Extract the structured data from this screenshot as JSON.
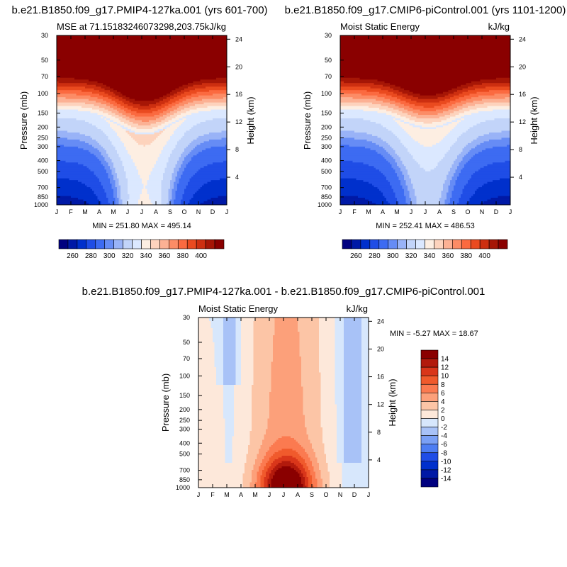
{
  "colors": {
    "absolute_scale": [
      "#00007f",
      "#0019a6",
      "#0030cc",
      "#1f4de6",
      "#3d6bf2",
      "#668cf5",
      "#99b3f7",
      "#c2d4f9",
      "#dbe8ff",
      "#fdeee2",
      "#fdd3bd",
      "#fcb194",
      "#fc8c66",
      "#fb6a40",
      "#ea4a1f",
      "#cd2f10",
      "#a61606",
      "#8a0000"
    ],
    "diff_scale": [
      "#00007f",
      "#0019a6",
      "#0030cc",
      "#1f4de6",
      "#4d7df2",
      "#7aa0f5",
      "#a8c2f7",
      "#d7e7fc",
      "#fde8da",
      "#fcc5a6",
      "#fca07a",
      "#fb7a50",
      "#f05a2c",
      "#d9361a",
      "#b21a0c",
      "#8a0000"
    ]
  },
  "chart_data": [
    {
      "type": "contour",
      "title": "b.e21.B1850.f09_g17.PMIP4-127ka.001 (yrs 601-700)",
      "left_label": "MSE at 71.15183246073298,203.75",
      "right_label": "kJ/kg",
      "xlabel": "",
      "ylabel": "Pressure (mb)",
      "ylabel_right": "Height (km)",
      "x_ticks": [
        "J",
        "F",
        "M",
        "A",
        "M",
        "J",
        "J",
        "A",
        "S",
        "O",
        "N",
        "D",
        "J"
      ],
      "p_ticks": [
        "30",
        "50",
        "70",
        "100",
        "150",
        "200",
        "250",
        "300",
        "400",
        "500",
        "700",
        "850",
        "1000"
      ],
      "p_values": [
        30,
        50,
        70,
        100,
        150,
        200,
        250,
        300,
        400,
        500,
        700,
        850,
        1000
      ],
      "height_ticks": [
        "24",
        "20",
        "16",
        "12",
        "8",
        "4"
      ],
      "height_values": [
        24,
        20,
        16,
        12,
        8,
        4
      ],
      "ylim": [
        1000,
        30
      ],
      "min_max": "MIN = 251.80 MAX = 495.14",
      "min": 251.8,
      "max": 495.14,
      "colorbar_labels": [
        "260",
        "280",
        "300",
        "320",
        "340",
        "360",
        "380",
        "400"
      ],
      "levels": [
        255,
        260,
        265,
        270,
        275,
        280,
        285,
        290,
        295,
        300,
        305,
        310,
        315,
        320,
        325,
        330,
        335,
        340,
        345,
        350,
        355,
        360,
        365,
        370,
        375,
        380,
        385,
        390,
        395,
        400,
        405
      ],
      "kind": "pmip"
    },
    {
      "type": "contour",
      "title": "b.e21.B1850.f09_g17.CMIP6-piControl.001 (yrs 1101-1200)",
      "left_label": "Moist Static Energy",
      "right_label": "kJ/kg",
      "xlabel": "",
      "ylabel": "Pressure (mb)",
      "ylabel_right": "Height (km)",
      "x_ticks": [
        "J",
        "F",
        "M",
        "A",
        "M",
        "J",
        "J",
        "A",
        "S",
        "O",
        "N",
        "D",
        "J"
      ],
      "p_ticks": [
        "30",
        "50",
        "70",
        "100",
        "150",
        "200",
        "250",
        "300",
        "400",
        "500",
        "700",
        "850",
        "1000"
      ],
      "p_values": [
        30,
        50,
        70,
        100,
        150,
        200,
        250,
        300,
        400,
        500,
        700,
        850,
        1000
      ],
      "height_ticks": [
        "24",
        "20",
        "16",
        "12",
        "8",
        "4"
      ],
      "height_values": [
        24,
        20,
        16,
        12,
        8,
        4
      ],
      "ylim": [
        1000,
        30
      ],
      "min_max": "MIN = 252.41 MAX = 486.53",
      "min": 252.41,
      "max": 486.53,
      "colorbar_labels": [
        "260",
        "280",
        "300",
        "320",
        "340",
        "360",
        "380",
        "400"
      ],
      "levels": [
        255,
        260,
        265,
        270,
        275,
        280,
        285,
        290,
        295,
        300,
        305,
        310,
        315,
        320,
        325,
        330,
        335,
        340,
        345,
        350,
        355,
        360,
        365,
        370,
        375,
        380,
        385,
        390,
        395,
        400,
        405
      ],
      "kind": "pi"
    },
    {
      "type": "contour",
      "title": "b.e21.B1850.f09_g17.PMIP4-127ka.001 - b.e21.B1850.f09_g17.CMIP6-piControl.001",
      "left_label": "Moist Static Energy",
      "right_label": "kJ/kg",
      "xlabel": "",
      "ylabel": "Pressure (mb)",
      "ylabel_right": "Height (km)",
      "x_ticks": [
        "J",
        "F",
        "M",
        "A",
        "M",
        "J",
        "J",
        "A",
        "S",
        "O",
        "N",
        "D",
        "J"
      ],
      "p_ticks": [
        "30",
        "50",
        "70",
        "100",
        "150",
        "200",
        "250",
        "300",
        "400",
        "500",
        "700",
        "850",
        "1000"
      ],
      "p_values": [
        30,
        50,
        70,
        100,
        150,
        200,
        250,
        300,
        400,
        500,
        700,
        850,
        1000
      ],
      "height_ticks": [
        "24",
        "20",
        "16",
        "12",
        "8",
        "4"
      ],
      "height_values": [
        24,
        20,
        16,
        12,
        8,
        4
      ],
      "ylim": [
        1000,
        30
      ],
      "min_max": "MIN =  -5.27 MAX =  18.67",
      "min": -5.27,
      "max": 18.67,
      "colorbar_labels": [
        "14",
        "12",
        "10",
        "8",
        "6",
        "4",
        "2",
        "0",
        "-2",
        "-4",
        "-6",
        "-8",
        "-10",
        "-12",
        "-14"
      ],
      "levels": [
        -14,
        -12,
        -10,
        -8,
        -6,
        -4,
        -2,
        0,
        2,
        4,
        6,
        8,
        10,
        12,
        14
      ],
      "kind": "diff"
    }
  ]
}
